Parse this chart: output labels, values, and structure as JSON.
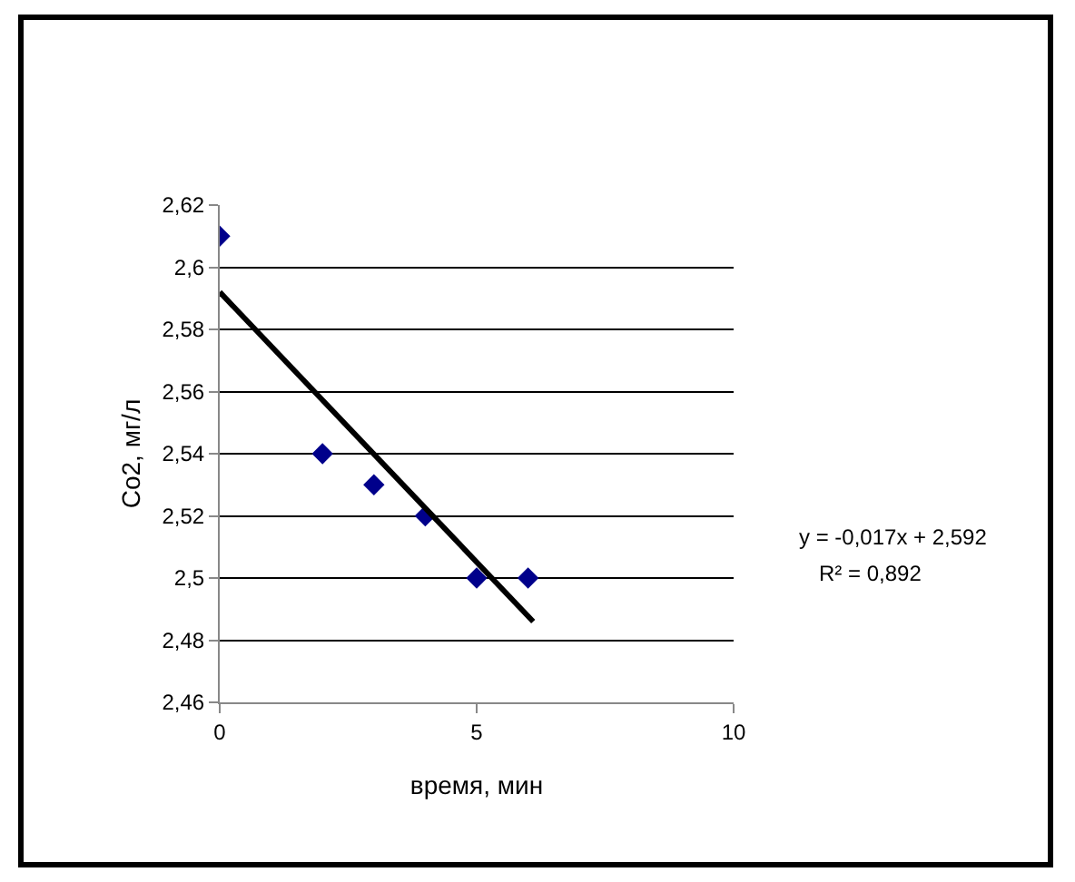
{
  "chart_data": {
    "type": "scatter",
    "xlabel": "время, мин",
    "ylabel": "Co2, мг/л",
    "series": [
      {
        "color": "#00008b",
        "marker": "diamond",
        "x": [
          0,
          2,
          3,
          4,
          5,
          6
        ],
        "values": [
          2.61,
          2.54,
          2.53,
          2.52,
          2.5,
          2.5
        ]
      },
      {
        "type": "line",
        "color": "#000000",
        "marker": "none",
        "x": [
          0,
          6.1
        ],
        "values": [
          2.592,
          2.486
        ]
      }
    ],
    "xlim": [
      0,
      10
    ],
    "xticks": [
      0,
      5,
      10
    ],
    "ylim": [
      2.46,
      2.62
    ],
    "yticks": [
      {
        "value": 2.46,
        "label": "2,46"
      },
      {
        "value": 2.48,
        "label": "2,48"
      },
      {
        "value": 2.5,
        "label": "2,5"
      },
      {
        "value": 2.52,
        "label": "2,52"
      },
      {
        "value": 2.54,
        "label": "2,54"
      },
      {
        "value": 2.56,
        "label": "2,56"
      },
      {
        "value": 2.58,
        "label": "2,58"
      },
      {
        "value": 2.6,
        "label": "2,6"
      },
      {
        "value": 2.62,
        "label": "2,62"
      }
    ],
    "grid": "y",
    "legend": false,
    "annotations": [
      "y = -0,017x + 2,592",
      "R² = 0,892"
    ]
  }
}
